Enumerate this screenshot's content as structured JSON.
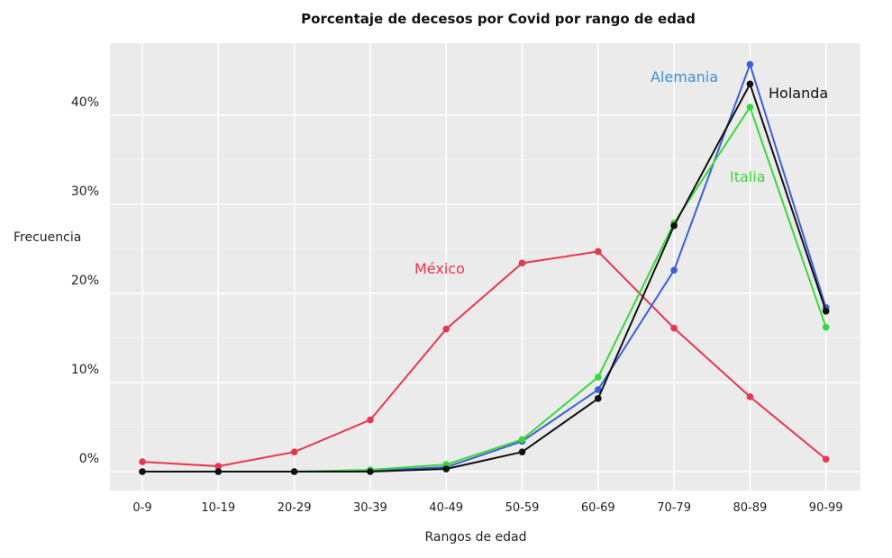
{
  "chart_data": {
    "type": "line",
    "title": "Porcentaje de decesos por Covid por rango de edad",
    "xlabel": "Rangos de edad",
    "ylabel": "Frecuencia",
    "categories": [
      "0-9",
      "10-19",
      "20-29",
      "30-39",
      "40-49",
      "50-59",
      "60-69",
      "70-79",
      "80-89",
      "90-99"
    ],
    "yticks": [
      0,
      10,
      20,
      30,
      40
    ],
    "ytick_labels": [
      "0%",
      "10%",
      "20%",
      "30%",
      "40%"
    ],
    "ylim": [
      -2,
      48
    ],
    "grid": true,
    "series": [
      {
        "name": "México",
        "color": "#e8364f",
        "values": [
          1.1,
          0.6,
          2.2,
          5.8,
          16.0,
          23.4,
          24.7,
          16.1,
          8.4,
          1.4
        ]
      },
      {
        "name": "Alemania",
        "color": "#3b5fd9",
        "label_color": "#3a8fd6",
        "values": [
          0,
          0,
          0,
          0.1,
          0.5,
          3.4,
          9.2,
          22.6,
          45.7,
          18.4
        ]
      },
      {
        "name": "Italia",
        "color": "#39d83a",
        "values": [
          0,
          0,
          0,
          0.2,
          0.8,
          3.6,
          10.6,
          27.9,
          40.9,
          16.2
        ]
      },
      {
        "name": "Holanda",
        "color": "#111111",
        "values": [
          0,
          0,
          0,
          0,
          0.3,
          2.2,
          8.2,
          27.6,
          43.5,
          18.0
        ]
      }
    ]
  }
}
